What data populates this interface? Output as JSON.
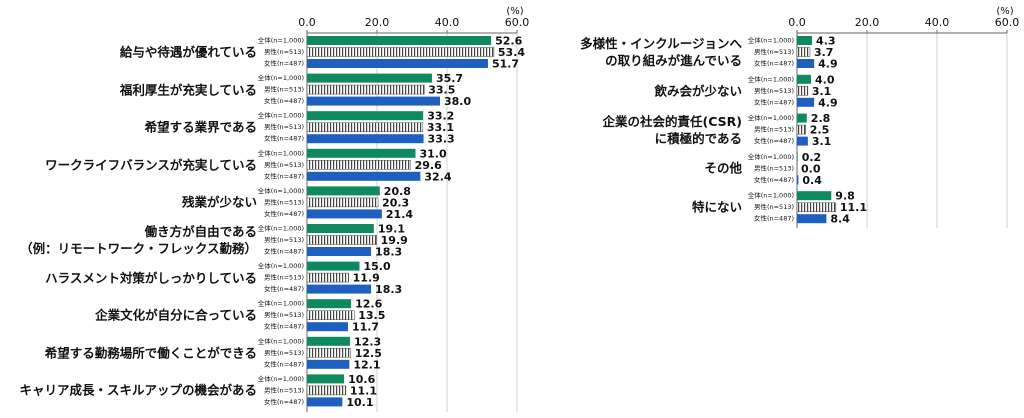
{
  "chart_data": [
    {
      "type": "hbar-grouped",
      "unit_label": "(%)",
      "categories": [
        "給与や待遇が優れている",
        "福利厚生が充実している",
        "希望する業界である",
        "ワークライフバランスが充実している",
        "残業が少ない",
        "働き方が自由である\n（例：リモートワーク・フレックス勤務）",
        "ハラスメント対策がしっかりしている",
        "企業文化が自分に合っている",
        "希望する勤務場所で働くことができる",
        "キャリア成長・スキルアップの機会がある"
      ],
      "series": [
        {
          "name": "全体(n=1,000)",
          "color": "#0f8a5f",
          "values": [
            52.6,
            35.7,
            33.2,
            31.0,
            20.8,
            19.1,
            15.0,
            12.6,
            12.3,
            10.6
          ],
          "value_labels": [
            "52.6",
            "35.7",
            "33.2",
            "31.0",
            "20.8",
            "19.1",
            "15.0",
            "12.6",
            "12.3",
            "10.6"
          ]
        },
        {
          "name": "男性(n=513)",
          "color": "#444444",
          "pattern": "stripes",
          "values": [
            53.4,
            33.5,
            33.1,
            29.6,
            20.3,
            19.9,
            11.9,
            13.5,
            12.5,
            11.1
          ],
          "value_labels": [
            "53.4",
            "33.5",
            "33.1",
            "29.6",
            "20.3",
            "19.9",
            "11.9",
            "13.5",
            "12.5",
            "11.1"
          ]
        },
        {
          "name": "女性(n=487)",
          "color": "#1f5fbf",
          "values": [
            51.7,
            38.0,
            33.3,
            32.4,
            21.4,
            18.3,
            18.3,
            11.7,
            12.1,
            10.1
          ],
          "value_labels": [
            "51.7",
            "38.0",
            "33.3",
            "32.4",
            "21.4",
            "18.3",
            "18.3",
            "11.7",
            "12.1",
            "10.1"
          ]
        }
      ],
      "xlim": [
        0,
        60
      ],
      "xticks": [
        {
          "value": 0,
          "label": "0.0"
        },
        {
          "value": 20,
          "label": "20.0"
        },
        {
          "value": 40,
          "label": "40.0"
        },
        {
          "value": 60,
          "label": "60.0"
        }
      ],
      "grid": true
    },
    {
      "type": "hbar-grouped",
      "unit_label": "(%)",
      "categories": [
        "多様性・インクルージョンへ\nの取り組みが進んでいる",
        "飲み会が少ない",
        "企業の社会的責任(CSR)\nに積極的である",
        "その他",
        "特にない"
      ],
      "series": [
        {
          "name": "全体(n=1,000)",
          "color": "#0f8a5f",
          "values": [
            4.3,
            4.0,
            2.8,
            0.2,
            9.8
          ],
          "value_labels": [
            "4.3",
            "4.0",
            "2.8",
            "0.2",
            "9.8"
          ]
        },
        {
          "name": "男性(n=513)",
          "color": "#444444",
          "pattern": "stripes",
          "values": [
            3.7,
            3.1,
            2.5,
            0.0,
            11.1
          ],
          "value_labels": [
            "3.7",
            "3.1",
            "2.5",
            "0.0",
            "11.1"
          ]
        },
        {
          "name": "女性(n=487)",
          "color": "#1f5fbf",
          "values": [
            4.9,
            4.9,
            3.1,
            0.4,
            8.4
          ],
          "value_labels": [
            "4.9",
            "4.9",
            "3.1",
            "0.4",
            "8.4"
          ]
        }
      ],
      "xlim": [
        0,
        60
      ],
      "xticks": [
        {
          "value": 0,
          "label": "0.0"
        },
        {
          "value": 20,
          "label": "20.0"
        },
        {
          "value": 40,
          "label": "40.0"
        },
        {
          "value": 60,
          "label": "60.0"
        }
      ],
      "grid": true
    }
  ]
}
